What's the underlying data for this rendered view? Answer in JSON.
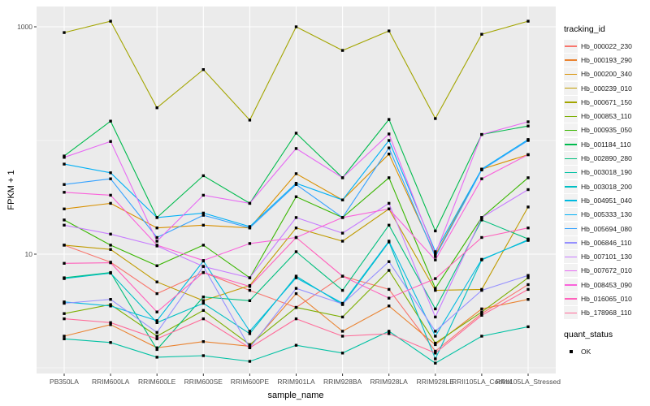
{
  "figure": {
    "y_axis_title": "FPKM + 1",
    "x_axis_title": "sample_name",
    "legend_title": "tracking_id",
    "legend2_title": "quant_status",
    "legend2_items": [
      "OK"
    ]
  },
  "chart_data": {
    "type": "line",
    "title": "",
    "xlabel": "sample_name",
    "ylabel": "FPKM + 1",
    "y_scale": "log10",
    "ylim": [
      1,
      1300
    ],
    "grid": "on",
    "legend_position": "right",
    "legend_title": "tracking_id",
    "marker": "black-square",
    "panel_bg": "#EBEBEB",
    "grid_color": "#FFFFFF",
    "x_categories": [
      "PB350LA",
      "RRIM600LA",
      "RRIM600LE",
      "RRIM600SE",
      "RRIM600PE",
      "RRIM901LA",
      "RRIM928BA",
      "RRIM928LA",
      "RRIM928LE",
      "RRII105LA_Control",
      "RRII105LA_Stressed"
    ],
    "y_major_ticks": [
      {
        "label": "1000",
        "value": 1000
      },
      {
        "label": "10",
        "value": 10
      }
    ],
    "y_minor_ticks": [
      1,
      100
    ],
    "series": [
      {
        "name": "Hb_000022_230",
        "color": "#F8766D",
        "values": [
          12,
          8.5,
          4.5,
          6.9,
          4.8,
          3.4,
          6.4,
          4.9,
          1.4,
          3.0,
          5.4
        ]
      },
      {
        "name": "Hb_000193_290",
        "color": "#EA8331",
        "values": [
          1.9,
          2.4,
          1.5,
          1.7,
          1.55,
          4.5,
          2.1,
          3.5,
          1.6,
          3.3,
          4.0
        ]
      },
      {
        "name": "Hb_000200_340",
        "color": "#D89000",
        "values": [
          25,
          28,
          17,
          18,
          17,
          51,
          30,
          76,
          9.8,
          56,
          75
        ]
      },
      {
        "name": "Hb_000239_010",
        "color": "#C09B00",
        "values": [
          12,
          11,
          5.7,
          3.9,
          5.3,
          17,
          13,
          25,
          4.8,
          4.9,
          26
        ]
      },
      {
        "name": "Hb_000671_150",
        "color": "#A3A500",
        "values": [
          890,
          1120,
          194,
          420,
          151,
          1000,
          620,
          920,
          156,
          860,
          1120
        ]
      },
      {
        "name": "Hb_000853_110",
        "color": "#7CAE00",
        "values": [
          3.0,
          3.6,
          1.9,
          3.2,
          1.6,
          3.4,
          2.8,
          7.2,
          1.65,
          3.1,
          6.2
        ]
      },
      {
        "name": "Hb_000935_050",
        "color": "#39B600",
        "values": [
          20,
          12,
          7.9,
          12,
          6.2,
          32,
          21,
          47,
          5.0,
          21,
          47
        ]
      },
      {
        "name": "Hb_001184_110",
        "color": "#00BB4E",
        "values": [
          73,
          148,
          21,
          49,
          28,
          116,
          47,
          153,
          16,
          113,
          134
        ]
      },
      {
        "name": "Hb_002890_280",
        "color": "#00BF7D",
        "values": [
          6.2,
          6.9,
          1.45,
          4.2,
          3.9,
          10.5,
          4.8,
          18,
          3.3,
          20,
          13.6
        ]
      },
      {
        "name": "Hb_003018_190",
        "color": "#00C1A3",
        "values": [
          1.8,
          1.67,
          1.24,
          1.28,
          1.14,
          1.58,
          1.35,
          2.1,
          1.1,
          1.9,
          2.3
        ]
      },
      {
        "name": "Hb_003018_200",
        "color": "#00BFC4",
        "values": [
          6.1,
          6.8,
          2.5,
          3.7,
          2.0,
          6.4,
          3.6,
          12.8,
          1.2,
          8.9,
          13.4
        ]
      },
      {
        "name": "Hb_004951_040",
        "color": "#00BAE0",
        "values": [
          3.8,
          3.5,
          2.6,
          8.7,
          2.1,
          6.2,
          3.7,
          13,
          1.9,
          9.0,
          13.2
        ]
      },
      {
        "name": "Hb_005333_130",
        "color": "#00B0F6",
        "values": [
          62,
          52,
          21,
          23,
          17.5,
          42,
          30,
          100,
          10.5,
          56,
          102
        ]
      },
      {
        "name": "Hb_005694_080",
        "color": "#35A2FF",
        "values": [
          41,
          46,
          14,
          22,
          17,
          41,
          21,
          86,
          9.5,
          55,
          100
        ]
      },
      {
        "name": "Hb_006846_110",
        "color": "#9590FF",
        "values": [
          3.7,
          4.0,
          2.05,
          7.8,
          1.5,
          5.0,
          3.65,
          8.6,
          2.1,
          4.8,
          6.5
        ]
      },
      {
        "name": "Hb_007101_130",
        "color": "#C77CFF",
        "values": [
          18,
          15,
          11.8,
          7.8,
          6.2,
          21,
          15.3,
          28,
          2.8,
          21,
          37
        ]
      },
      {
        "name": "Hb_007672_010",
        "color": "#E76BF3",
        "values": [
          71,
          98,
          13,
          33,
          28,
          85,
          47,
          114,
          10,
          113,
          146
        ]
      },
      {
        "name": "Hb_008453_090",
        "color": "#FA62DB",
        "values": [
          35,
          33,
          12,
          8.8,
          12.4,
          14,
          21,
          25,
          8.9,
          46,
          75
        ]
      },
      {
        "name": "Hb_016065_010",
        "color": "#FF62BC",
        "values": [
          8.3,
          8.4,
          3.1,
          6.9,
          5.2,
          14,
          6.4,
          4.1,
          6.1,
          14,
          17
        ]
      },
      {
        "name": "Hb_178968_110",
        "color": "#FF6A98",
        "values": [
          2.7,
          2.5,
          1.8,
          2.7,
          1.5,
          2.7,
          1.9,
          2.0,
          1.35,
          2.9,
          4.9
        ]
      }
    ],
    "quant_status_legend": {
      "label": "OK",
      "marker": "black-square"
    }
  }
}
